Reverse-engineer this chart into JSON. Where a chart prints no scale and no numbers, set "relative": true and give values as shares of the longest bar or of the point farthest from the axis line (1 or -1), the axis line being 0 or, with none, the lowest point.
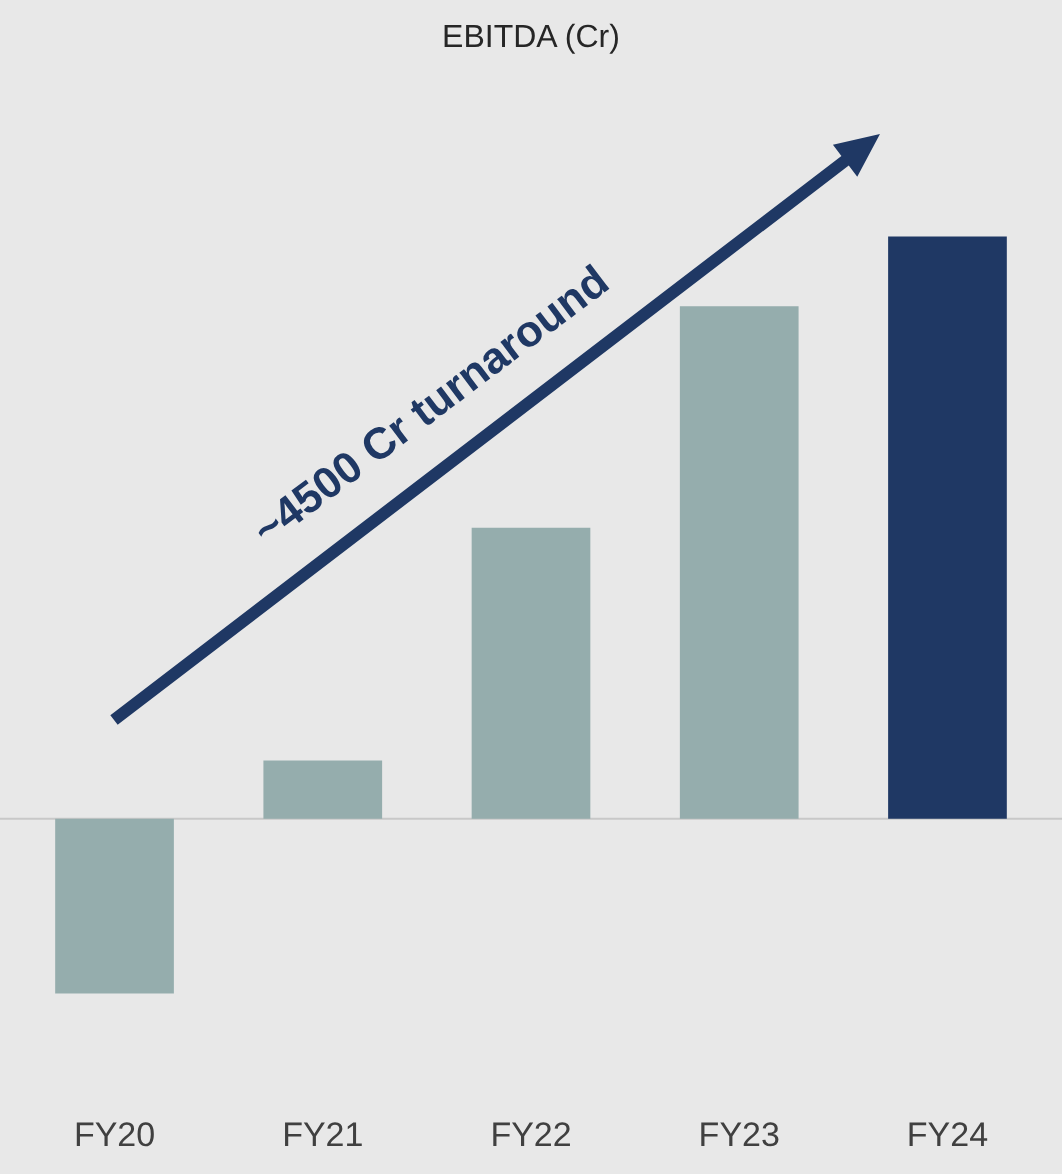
{
  "chart_data": {
    "type": "bar",
    "title": "EBITDA (Cr)",
    "relative": true,
    "categories": [
      "FY20",
      "FY21",
      "FY22",
      "FY23",
      "FY24"
    ],
    "values": [
      -0.3,
      0.1,
      0.5,
      0.88,
      1
    ],
    "colors": [
      "#95adad",
      "#95adad",
      "#95adad",
      "#95adad",
      "#1f3864"
    ],
    "annotations": [
      "~4500 Cr turnaround"
    ]
  }
}
